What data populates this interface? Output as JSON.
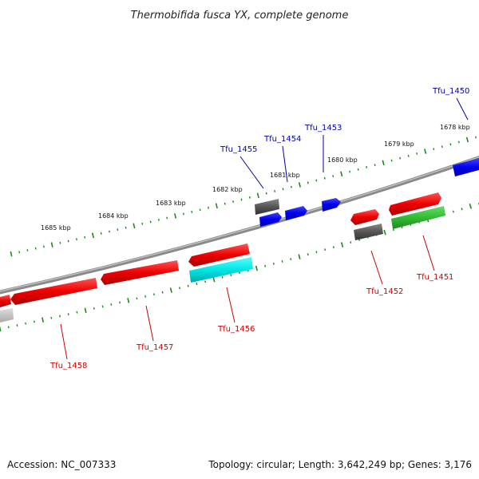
{
  "title": "Thermobifida fusca YX, complete genome",
  "accession": "Accession: NC_007333",
  "summary": "Topology: circular; Length: 3,642,249 bp; Genes: 3,176",
  "colors": {
    "backbone": "#7a7a7a",
    "scale": "#1a8a1a",
    "label_top": "#0000aa",
    "label_bottom": "#cc0000",
    "red": "#ee1111",
    "blue": "#1111dd",
    "gray": "#666666",
    "light_gray": "#bbbbbb",
    "cyan": "#11dddd",
    "green": "#33bb33"
  },
  "kbp_labels": [
    "1685 kbp",
    "1684 kbp",
    "1683 kbp",
    "1682 kbp",
    "1681 kbp",
    "1680 kbp",
    "1679 kbp",
    "1678 kbp"
  ],
  "genes": {
    "tfu_1450": "Tfu_1450",
    "tfu_1451": "Tfu_1451",
    "tfu_1452": "Tfu_1452",
    "tfu_1453": "Tfu_1453",
    "tfu_1454": "Tfu_1454",
    "tfu_1455": "Tfu_1455",
    "tfu_1456": "Tfu_1456",
    "tfu_1457": "Tfu_1457",
    "tfu_1458": "Tfu_1458"
  }
}
